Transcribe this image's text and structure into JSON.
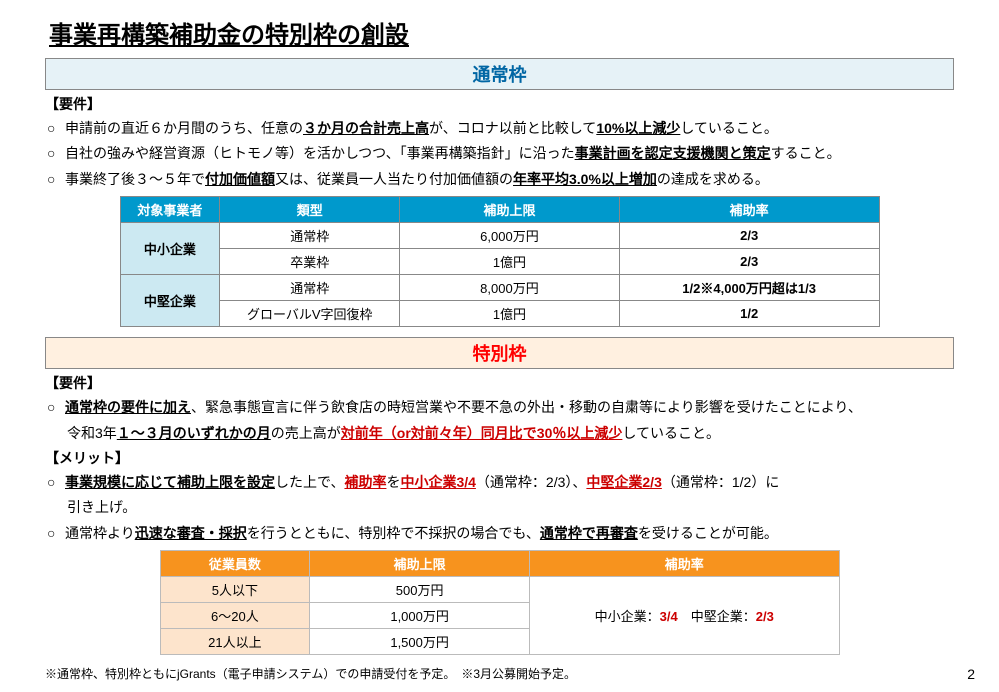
{
  "page": {
    "title": "事業再構築補助金の特別枠の創設",
    "number": "2",
    "footnote": "※通常枠、特別枠ともにjGrants（電子申請システム）での申請受付を予定。　※3月公募開始予定。"
  },
  "regular": {
    "header": "通常枠",
    "sub": "【要件】",
    "b1a": "申請前の直近６か月間のうち、任意の",
    "b1b": "３か月の合計売上高",
    "b1c": "が、コロナ以前と比較して",
    "b1d": "10%以上減少",
    "b1e": "していること。",
    "b2a": "自社の強みや経営資源（ヒトモノ等）を活かしつつ、「事業再構築指針」に沿った",
    "b2b": "事業計画を認定支援機関と策定",
    "b2c": "すること。",
    "b3a": "事業終了後３～５年で",
    "b3b": "付加価値額",
    "b3c": "又は、従業員一人当たり付加価値額の",
    "b3d": "年率平均3.0%以上増加",
    "b3e": "の達成を求める。"
  },
  "table1": {
    "h_entity": "対象事業者",
    "h_type": "類型",
    "h_limit": "補助上限",
    "h_rate": "補助率",
    "r1_entity": "中小企業",
    "r1_type": "通常枠",
    "r1_limit": "6,000万円",
    "r1_rate": "2/3",
    "r2_type": "卒業枠",
    "r2_limit": "1億円",
    "r2_rate": "2/3",
    "r3_entity": "中堅企業",
    "r3_type": "通常枠",
    "r3_limit": "8,000万円",
    "r3_rate": "1/2※4,000万円超は1/3",
    "r4_type": "グローバルV字回復枠",
    "r4_limit": "1億円",
    "r4_rate": "1/2"
  },
  "special": {
    "header": "特別枠",
    "sub1": "【要件】",
    "b1a": "通常枠の要件に加え",
    "b1b": "、緊急事態宣言に伴う飲食店の時短営業や不要不急の外出・移動の自粛等により影響を受けたことにより、",
    "b1c": "令和3年",
    "b1d": "１～３月のいずれかの月",
    "b1e": "の売上高が",
    "b1f": "対前年（or対前々年）同月比で30％以上減少",
    "b1g": "していること。",
    "sub2": "【メリット】",
    "m1a": "事業規模に応じて補助上限を設定",
    "m1b": "した上で、",
    "m1c": "補助率",
    "m1d": "を",
    "m1e": "中小企業3/4",
    "m1f": "（通常枠：2/3）、",
    "m1g": "中堅企業2/3",
    "m1h": "（通常枠：1/2）に",
    "m1i": "引き上げ。",
    "m2a": "通常枠より",
    "m2b": "迅速な審査・採択",
    "m2c": "を行うとともに、特別枠で不採択の場合でも、",
    "m2d": "通常枠で再審査",
    "m2e": "を受けることが可能。"
  },
  "table2": {
    "h_emp": "従業員数",
    "h_limit": "補助上限",
    "h_rate": "補助率",
    "r1_emp": "5人以下",
    "r1_limit": "500万円",
    "r2_emp": "6～20人",
    "r2_limit": "1,000万円",
    "r3_emp": "21人以上",
    "r3_limit": "1,500万円",
    "rate_a": "中小企業：",
    "rate_b": "3/4",
    "rate_c": "　中堅企業：",
    "rate_d": "2/3"
  }
}
